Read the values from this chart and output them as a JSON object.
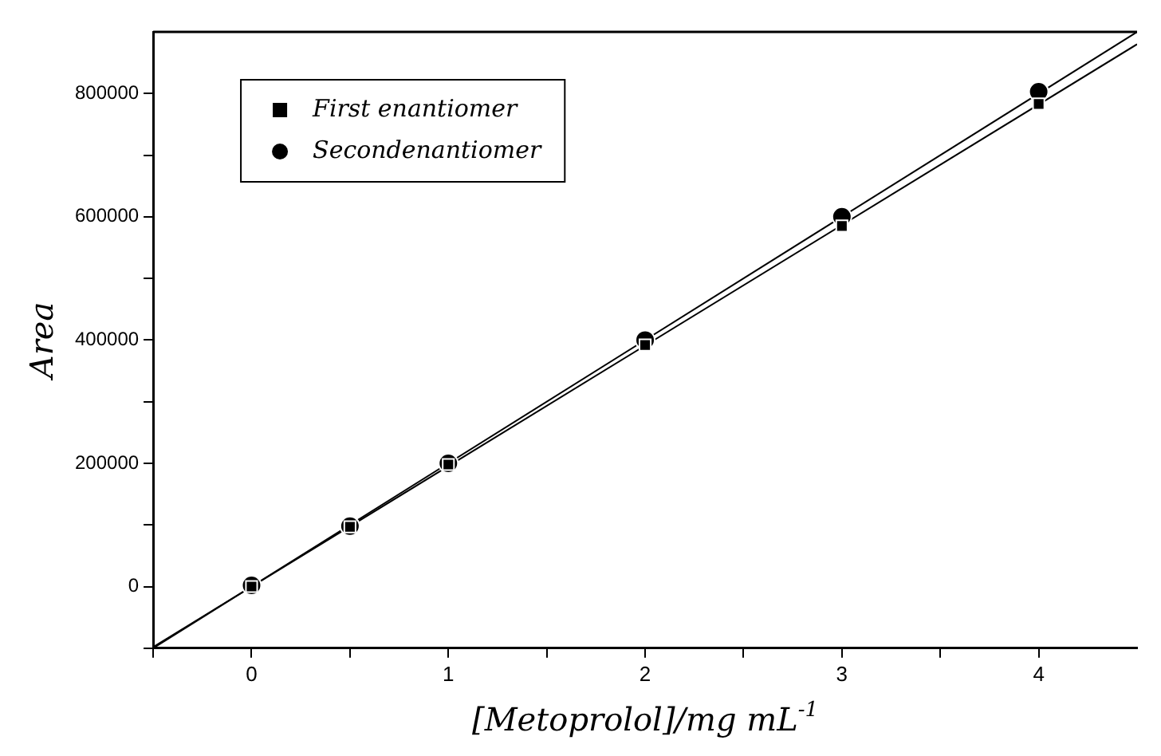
{
  "chart_data": {
    "type": "scatter",
    "xlabel": "[Metoprolol]/mg mL$^{-1}$",
    "ylabel": "Area",
    "xlim": [
      -0.5,
      4.5
    ],
    "xticks": [
      {
        "value": -0.5,
        "label": null
      },
      0,
      {
        "value": 0.5,
        "label": null
      },
      1,
      {
        "value": 1.5,
        "label": null
      },
      2,
      {
        "value": 2.5,
        "label": null
      },
      3,
      {
        "value": 3.5,
        "label": null
      },
      4
    ],
    "ylim": [
      -100000,
      900000
    ],
    "yticks": [
      {
        "value": -100000,
        "label": null
      },
      0,
      {
        "value": 100000,
        "label": null
      },
      200000,
      {
        "value": 300000,
        "label": null
      },
      400000,
      {
        "value": 500000,
        "label": null
      },
      600000,
      {
        "value": 700000,
        "label": null
      },
      800000
    ],
    "grid": false,
    "legend": "top left",
    "series": [
      {
        "name": "First enantiomer",
        "type": "scatter",
        "marker": "square",
        "color": "#000000",
        "x": [
          0,
          0.5,
          1,
          2,
          3,
          4
        ],
        "values": [
          0,
          97000,
          198000,
          392000,
          585000,
          783000
        ]
      },
      {
        "name": "Secondenantiomer",
        "type": "scatter",
        "marker": "circle",
        "color": "#000000",
        "x": [
          0,
          0.5,
          1,
          2,
          3,
          4
        ],
        "values": [
          2000,
          98000,
          200000,
          400000,
          600000,
          803000
        ]
      },
      {
        "type": "line",
        "color": "#000000",
        "x": [
          -0.5,
          4.5
        ],
        "values": [
          -98000,
          880000
        ]
      },
      {
        "type": "line",
        "color": "#000000",
        "x": [
          -0.5,
          4.5
        ],
        "values": [
          -100000,
          900000
        ]
      }
    ]
  }
}
